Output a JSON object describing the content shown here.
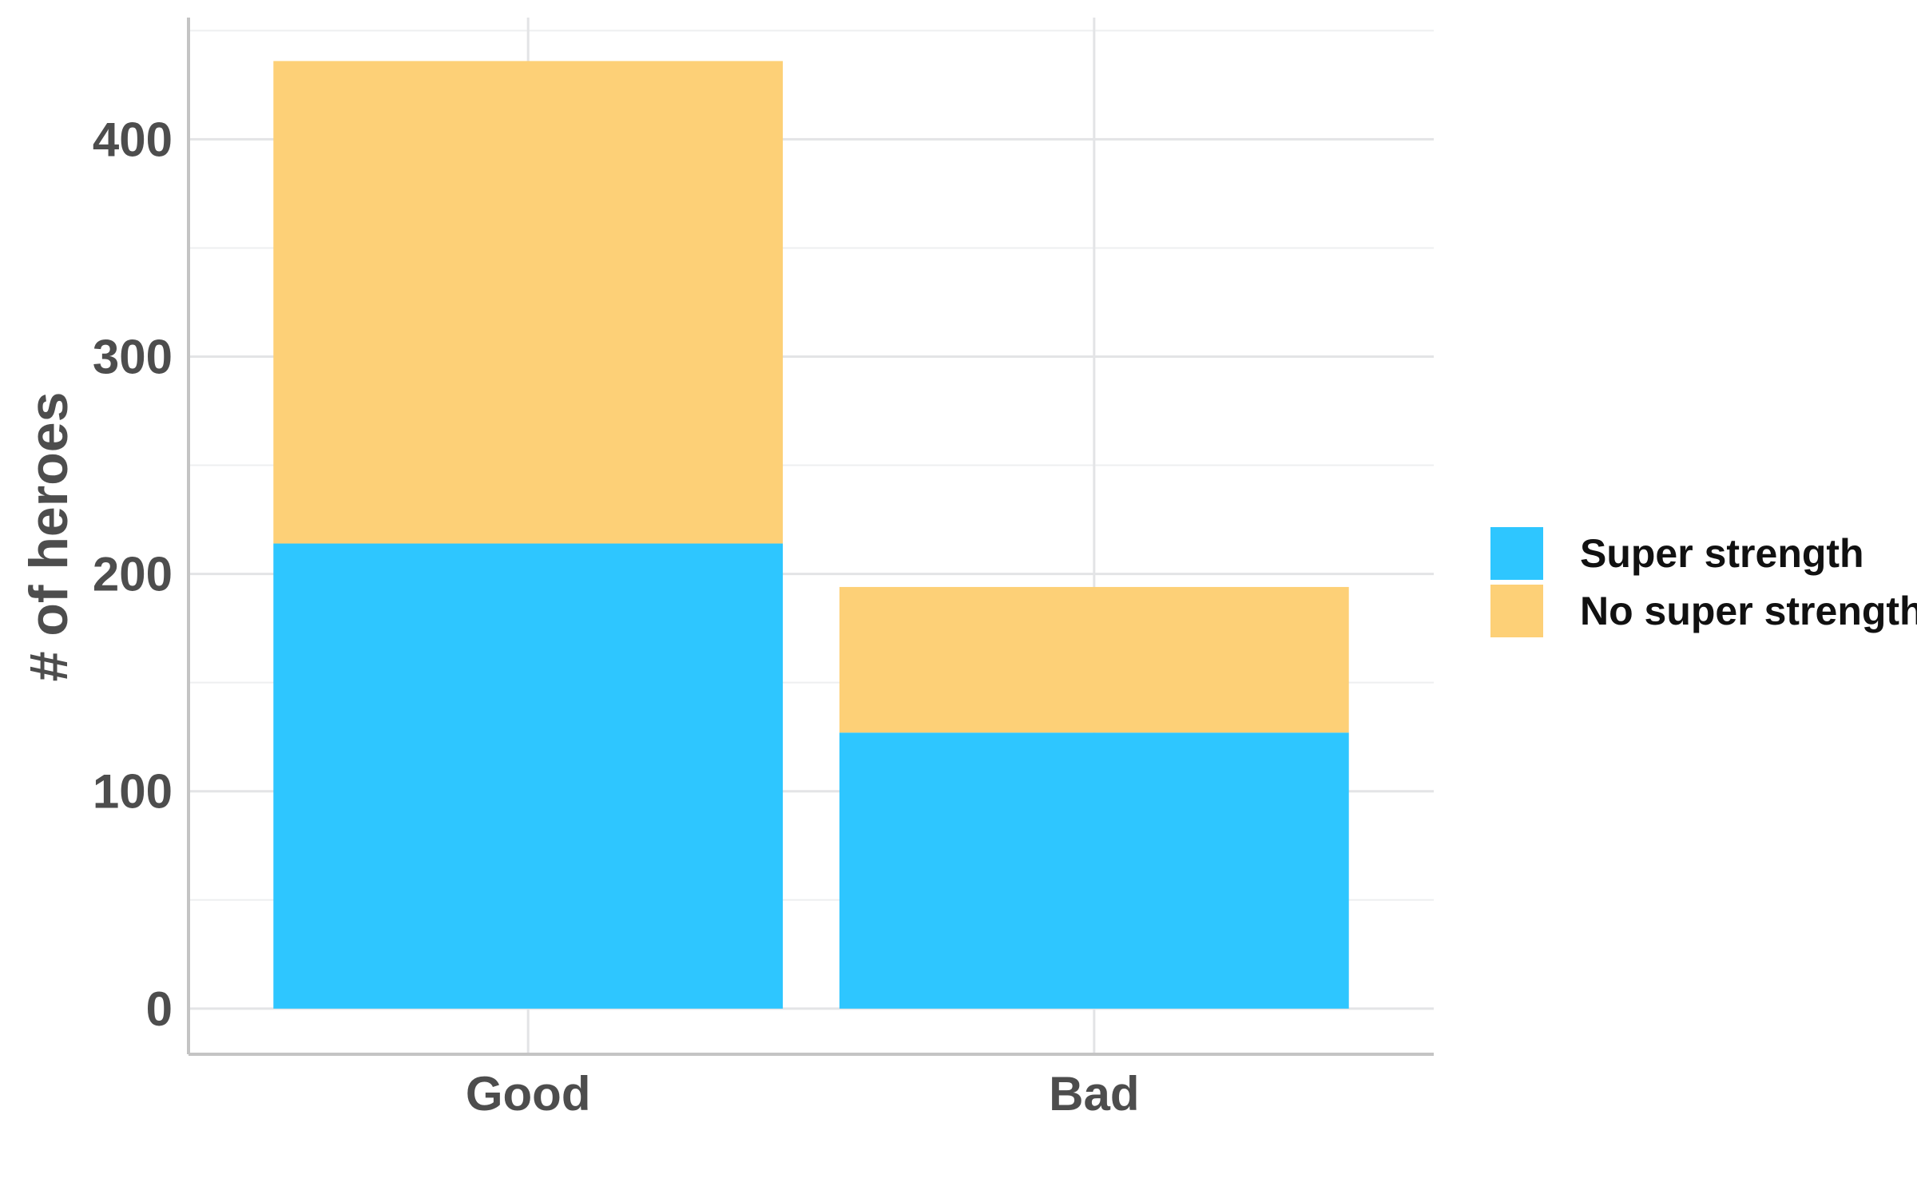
{
  "chart_data": {
    "type": "bar",
    "stacked": true,
    "categories": [
      "Good",
      "Bad"
    ],
    "series": [
      {
        "name": "Super strength",
        "values": [
          214,
          127
        ],
        "color": "#2ec6ff"
      },
      {
        "name": "No super strength",
        "values": [
          222,
          67
        ],
        "color": "#fdd077"
      }
    ],
    "title": "",
    "xlabel": "",
    "ylabel": "# of heroes",
    "ylim": [
      -21,
      456
    ],
    "yticks": [
      0,
      100,
      200,
      300,
      400
    ],
    "grid": true,
    "legend_position": "right"
  }
}
